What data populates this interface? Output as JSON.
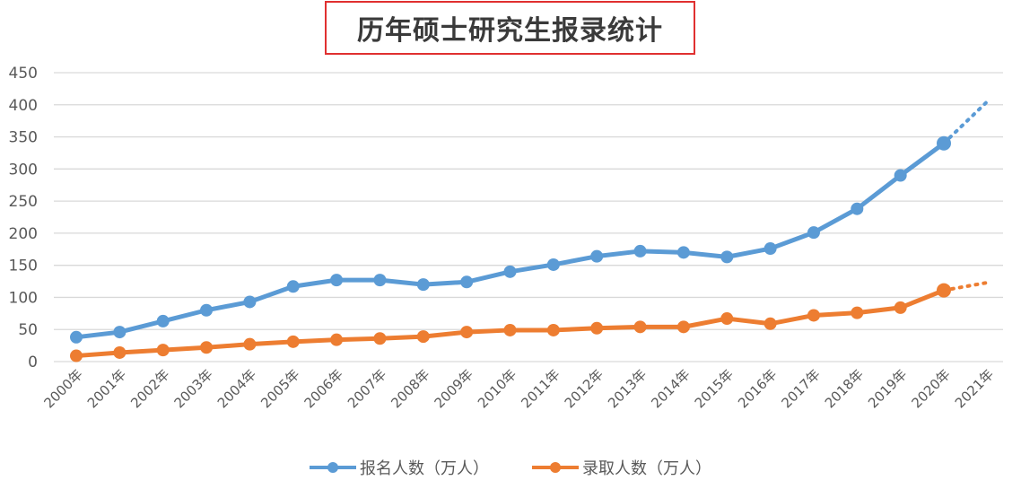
{
  "chart_data": {
    "type": "line",
    "title": "历年硕士研究生报录统计",
    "xlabel": "",
    "ylabel": "",
    "ylim": [
      0,
      450
    ],
    "yticks": [
      0,
      50,
      100,
      150,
      200,
      250,
      300,
      350,
      400,
      450
    ],
    "grid": true,
    "legend_position": "bottom",
    "categories": [
      "2000年",
      "2001年",
      "2002年",
      "2003年",
      "2004年",
      "2005年",
      "2006年",
      "2007年",
      "2008年",
      "2009年",
      "2010年",
      "2011年",
      "2012年",
      "2013年",
      "2014年",
      "2015年",
      "2016年",
      "2017年",
      "2018年",
      "2019年",
      "2020年",
      "2021年"
    ],
    "series": [
      {
        "name": "报名人数（万人）",
        "color": "#5b9bd5",
        "values": [
          38,
          46,
          63,
          80,
          93,
          117,
          127,
          127,
          120,
          124,
          140,
          151,
          164,
          172,
          170,
          163,
          176,
          201,
          238,
          290,
          340,
          405
        ],
        "projected_last": true
      },
      {
        "name": "录取人数（万人）",
        "color": "#ed7d31",
        "values": [
          9,
          14,
          18,
          22,
          27,
          31,
          34,
          36,
          39,
          46,
          49,
          49,
          52,
          54,
          54,
          67,
          59,
          72,
          76,
          84,
          111,
          123
        ],
        "projected_last": true
      }
    ]
  },
  "legend": {
    "items": [
      {
        "label": "报名人数（万人）",
        "color": "#5b9bd5"
      },
      {
        "label": "录取人数（万人）",
        "color": "#ed7d31"
      }
    ]
  }
}
